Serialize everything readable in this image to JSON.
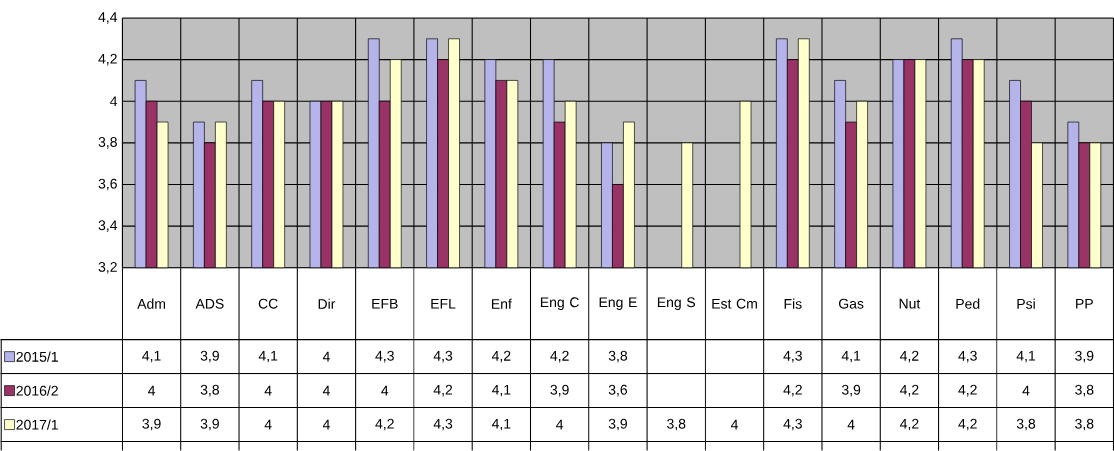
{
  "chart_data": {
    "type": "bar",
    "categories": [
      "Adm",
      "ADS",
      "CC",
      "Dir",
      "EFB",
      "EFL",
      "Enf",
      "Eng C",
      "Eng E",
      "Eng S",
      "Est Cm",
      "Fis",
      "Gas",
      "Nut",
      "Ped",
      "Psi",
      "PP"
    ],
    "series": [
      {
        "name": "2015/1",
        "color": "#b4b4ea",
        "values": [
          4.1,
          3.9,
          4.1,
          4,
          4.3,
          4.3,
          4.2,
          4.2,
          3.8,
          null,
          null,
          4.3,
          4.1,
          4.2,
          4.3,
          4.1,
          3.9
        ],
        "value_labels": [
          "4,1",
          "3,9",
          "4,1",
          "4",
          "4,3",
          "4,3",
          "4,2",
          "4,2",
          "3,8",
          null,
          null,
          "4,3",
          "4,1",
          "4,2",
          "4,3",
          "4,1",
          "3,9"
        ]
      },
      {
        "name": "2016/2",
        "color": "#993366",
        "values": [
          4,
          3.8,
          4,
          4,
          4,
          4.2,
          4.1,
          3.9,
          3.6,
          null,
          null,
          4.2,
          3.9,
          4.2,
          4.2,
          4,
          3.8
        ],
        "value_labels": [
          "4",
          "3,8",
          "4",
          "4",
          "4",
          "4,2",
          "4,1",
          "3,9",
          "3,6",
          null,
          null,
          "4,2",
          "3,9",
          "4,2",
          "4,2",
          "4",
          "3,8"
        ]
      },
      {
        "name": "2017/1",
        "color": "#ffffcc",
        "values": [
          3.9,
          3.9,
          4,
          4,
          4.2,
          4.3,
          4.1,
          4,
          3.9,
          3.8,
          4,
          4.3,
          4,
          4.2,
          4.2,
          3.8,
          3.8
        ],
        "value_labels": [
          "3,9",
          "3,9",
          "4",
          "4",
          "4,2",
          "4,3",
          "4,1",
          "4",
          "3,9",
          "3,8",
          "4",
          "4,3",
          "4",
          "4,2",
          "4,2",
          "3,8",
          "3,8"
        ]
      }
    ],
    "ylim": [
      3.2,
      4.4
    ],
    "yticks": [
      {
        "value": 3.2,
        "label": "3,2"
      },
      {
        "value": 3.4,
        "label": "3,4"
      },
      {
        "value": 3.6,
        "label": "3,6"
      },
      {
        "value": 3.8,
        "label": "3,8"
      },
      {
        "value": 4,
        "label": "4"
      },
      {
        "value": 4.2,
        "label": "4,2"
      },
      {
        "value": 4.4,
        "label": "4,4"
      }
    ],
    "grid": "y",
    "legend": "bottom left"
  }
}
